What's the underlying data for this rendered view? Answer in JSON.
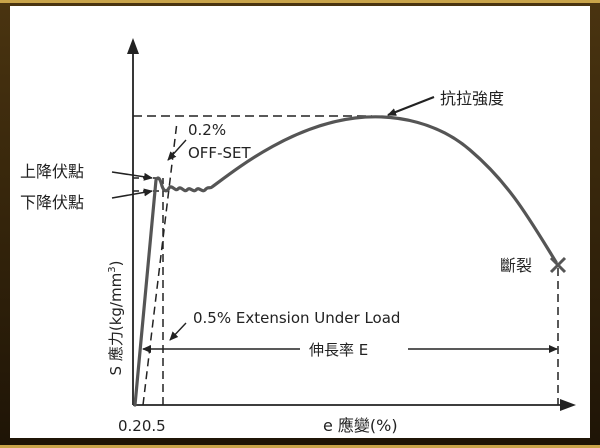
{
  "labels": {
    "tensile_strength": "抗拉強度",
    "offset_line1": "0.2%",
    "offset_line2": "OFF-SET",
    "upper_yield": "上降伏點",
    "lower_yield": "下降伏點",
    "fracture": "斷裂",
    "extension_under_load": "0.5% Extension Under Load",
    "elongation": "伸長率 E",
    "y_axis_prefix": "S 應力(kg/mm",
    "y_axis_superscript": "3",
    "y_axis_suffix": ")",
    "x_axis": "e 應變(%)",
    "x_tick": "0.20.5"
  },
  "colors": {
    "curve": "#555555",
    "ink": "#222222",
    "background": "#ffffff"
  }
}
